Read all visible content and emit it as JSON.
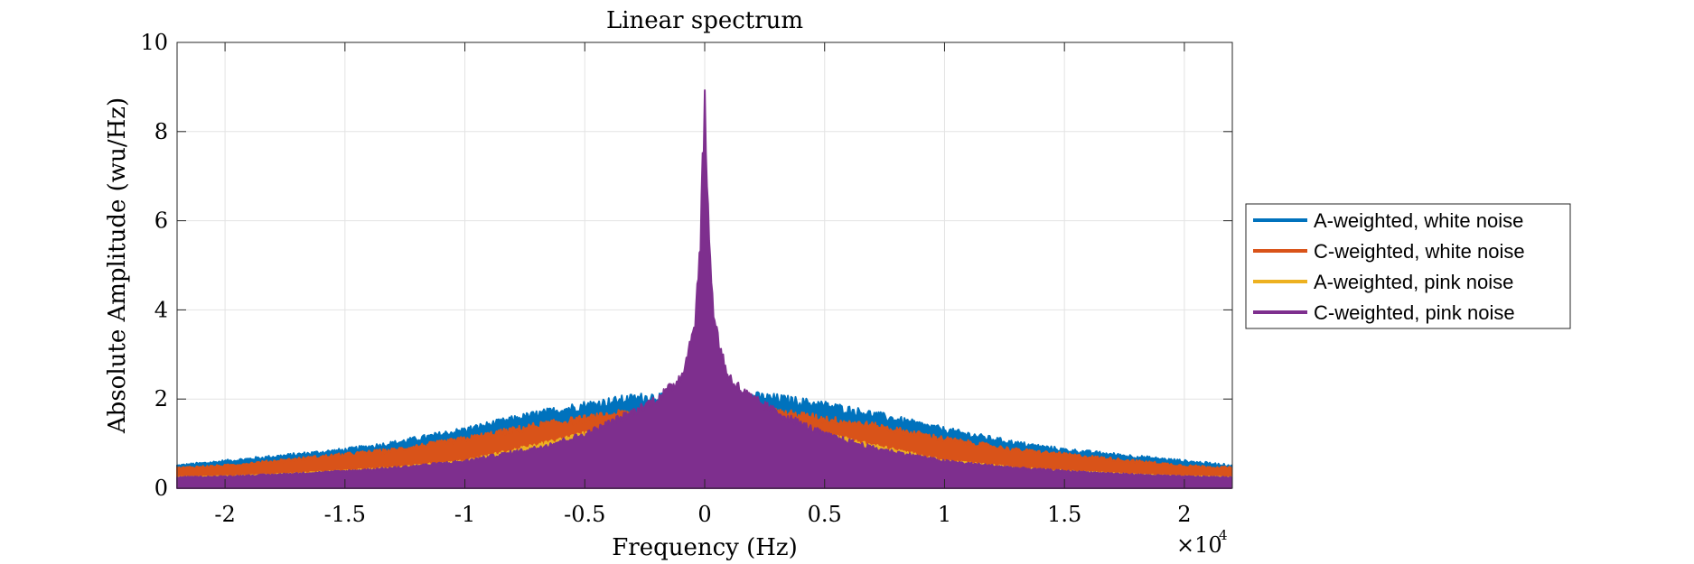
{
  "chart_data": {
    "type": "area",
    "title": "Linear spectrum",
    "xlabel": "Frequency (Hz)",
    "ylabel": "Absolute Amplitude (wu/Hz)",
    "x_scale_label": "×10",
    "x_scale_exponent": "4",
    "xlim": [
      -2.2,
      2.2
    ],
    "ylim": [
      0,
      10
    ],
    "x_ticks": [
      {
        "value": -2,
        "label": "-2"
      },
      {
        "value": -1.5,
        "label": "-1.5"
      },
      {
        "value": -1,
        "label": "-1"
      },
      {
        "value": -0.5,
        "label": "-0.5"
      },
      {
        "value": 0,
        "label": "0"
      },
      {
        "value": 0.5,
        "label": "0.5"
      },
      {
        "value": 1,
        "label": "1"
      },
      {
        "value": 1.5,
        "label": "1.5"
      },
      {
        "value": 2,
        "label": "2"
      }
    ],
    "y_ticks": [
      {
        "value": 0,
        "label": "0"
      },
      {
        "value": 2,
        "label": "2"
      },
      {
        "value": 4,
        "label": "4"
      },
      {
        "value": 6,
        "label": "6"
      },
      {
        "value": 8,
        "label": "8"
      },
      {
        "value": 10,
        "label": "10"
      }
    ],
    "grid": true,
    "legend_position": "outside-right",
    "series": [
      {
        "name": "A-weighted, white noise",
        "color": "#0072BD",
        "envelope": {
          "x": [
            0,
            0.05,
            0.1,
            0.2,
            0.3,
            0.5,
            0.7,
            1.0,
            1.3,
            1.5,
            1.8,
            2.0,
            2.2
          ],
          "y_top": [
            1.2,
            1.5,
            1.85,
            2.05,
            2.0,
            1.85,
            1.65,
            1.3,
            1.0,
            0.85,
            0.7,
            0.6,
            0.5
          ],
          "y_bottom": [
            0.0,
            0.0,
            0.2,
            0.35,
            0.5,
            0.6,
            0.55,
            0.45,
            0.4,
            0.38,
            0.38,
            0.38,
            0.38
          ]
        }
      },
      {
        "name": "C-weighted, white noise",
        "color": "#D95319",
        "envelope": {
          "x": [
            0,
            0.05,
            0.1,
            0.2,
            0.3,
            0.5,
            0.7,
            1.0,
            1.3,
            1.5,
            1.8,
            2.0,
            2.2
          ],
          "y_top": [
            1.6,
            1.7,
            1.75,
            1.75,
            1.7,
            1.55,
            1.4,
            1.1,
            0.85,
            0.75,
            0.6,
            0.5,
            0.45
          ],
          "y_bottom": [
            0.0,
            0.05,
            0.15,
            0.2,
            0.2,
            0.2,
            0.2,
            0.2,
            0.2,
            0.2,
            0.2,
            0.2,
            0.2
          ]
        }
      },
      {
        "name": "A-weighted, pink noise",
        "color": "#EDB120",
        "envelope": {
          "x": [
            0,
            0.05,
            0.1,
            0.2,
            0.3,
            0.5,
            0.7,
            1.0,
            1.3,
            1.5,
            1.8,
            2.0,
            2.2
          ],
          "y_top": [
            2.3,
            2.3,
            2.2,
            1.75,
            1.55,
            1.2,
            0.95,
            0.6,
            0.45,
            0.38,
            0.3,
            0.26,
            0.24
          ],
          "y_bottom": [
            0.0,
            0.0,
            0.1,
            0.15,
            0.12,
            0.1,
            0.08,
            0.06,
            0.05,
            0.05,
            0.05,
            0.05,
            0.05
          ]
        }
      },
      {
        "name": "C-weighted, pink noise",
        "color": "#7E2F8E",
        "envelope": {
          "x": [
            0,
            0.01,
            0.02,
            0.04,
            0.07,
            0.1,
            0.15,
            0.2,
            0.3,
            0.5,
            0.7,
            1.0,
            1.3,
            1.5,
            1.8,
            2.0,
            2.2
          ],
          "y_top": [
            8.5,
            7.0,
            5.2,
            3.8,
            3.0,
            2.5,
            2.2,
            2.0,
            1.7,
            1.2,
            0.9,
            0.6,
            0.45,
            0.38,
            0.3,
            0.26,
            0.24
          ],
          "y_bottom": [
            0.0,
            0.0,
            0.0,
            0.0,
            0.0,
            0.0,
            0.0,
            0.0,
            0.0,
            0.0,
            0.0,
            0.0,
            0.0,
            0.0,
            0.0,
            0.0,
            0.0
          ]
        }
      }
    ]
  }
}
